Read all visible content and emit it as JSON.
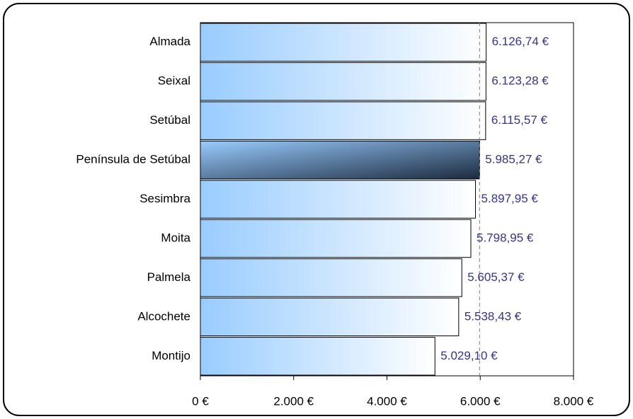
{
  "chart_data": {
    "type": "bar",
    "orientation": "horizontal",
    "categories": [
      "Almada",
      "Seixal",
      "Setúbal",
      "Península de Setúbal",
      "Sesimbra",
      "Moita",
      "Palmela",
      "Alcochete",
      "Montijo"
    ],
    "values": [
      6126.74,
      6123.28,
      6115.57,
      5985.27,
      5897.95,
      5798.95,
      5605.37,
      5538.43,
      5029.1
    ],
    "value_labels": [
      "6.126,74 €",
      "6.123,28 €",
      "6.115,57 €",
      "5.985,27 €",
      "5.897,95 €",
      "5.798,95 €",
      "5.605,37 €",
      "5.538,43 €",
      "5.029,10 €"
    ],
    "color": "#99ccff",
    "highlight_color": "#1c2b3f",
    "highlight_index": 3,
    "label_color": "#333399",
    "xlim": [
      0,
      8000
    ],
    "xticks": [
      {
        "value": 0,
        "label": "0 €"
      },
      {
        "value": 2000,
        "label": "2.000 €"
      },
      {
        "value": 4000,
        "label": "4.000 €"
      },
      {
        "value": 6000,
        "label": "6.000 €"
      },
      {
        "value": 8000,
        "label": "8.000 €"
      }
    ]
  }
}
